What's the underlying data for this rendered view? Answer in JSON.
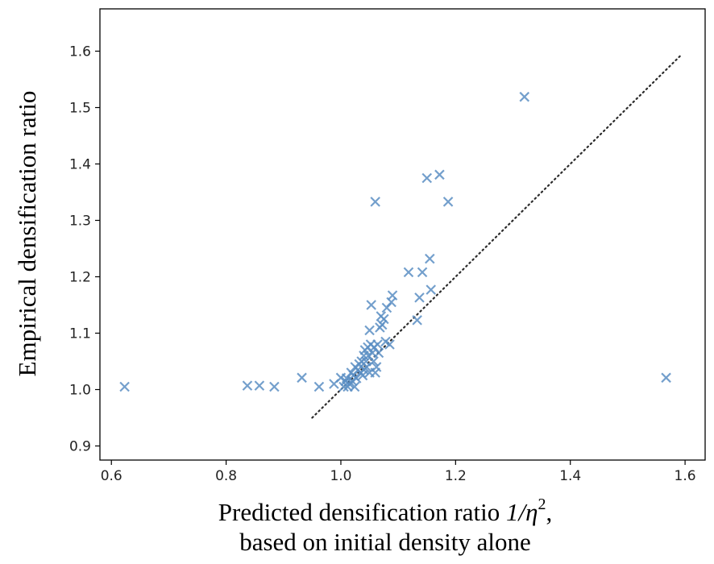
{
  "chart_data": {
    "type": "scatter",
    "title": "",
    "xlabel_line1": "Predicted densification ratio",
    "xlabel_math": "1/η",
    "xlabel_sup": "2",
    "xlabel_trail": ",",
    "xlabel_line2": "based on initial density alone",
    "ylabel": "Empirical densification ratio",
    "xlim": [
      0.58,
      1.635
    ],
    "ylim": [
      0.875,
      1.675
    ],
    "xticks": [
      0.6,
      0.8,
      1.0,
      1.2,
      1.4,
      1.6
    ],
    "xtick_labels": [
      "0.6",
      "0.8",
      "1.0",
      "1.2",
      "1.4",
      "1.6"
    ],
    "yticks": [
      0.9,
      1.0,
      1.1,
      1.2,
      1.3,
      1.4,
      1.5,
      1.6
    ],
    "ytick_labels": [
      "0.9",
      "1.0",
      "1.1",
      "1.2",
      "1.3",
      "1.4",
      "1.5",
      "1.6"
    ],
    "grid": false,
    "marker": "x",
    "marker_color": "#5b8ec3",
    "reference_line": {
      "style": "dotted",
      "color": "#2a2a2a",
      "x": [
        0.95,
        1.595
      ],
      "y": [
        0.95,
        1.595
      ]
    },
    "points": [
      {
        "x": 0.623,
        "y": 1.005
      },
      {
        "x": 0.837,
        "y": 1.007
      },
      {
        "x": 0.858,
        "y": 1.007
      },
      {
        "x": 0.884,
        "y": 1.005
      },
      {
        "x": 0.932,
        "y": 1.021
      },
      {
        "x": 0.962,
        "y": 1.005
      },
      {
        "x": 0.988,
        "y": 1.01
      },
      {
        "x": 1.0,
        "y": 1.021
      },
      {
        "x": 1.005,
        "y": 1.005
      },
      {
        "x": 1.008,
        "y": 1.015
      },
      {
        "x": 1.01,
        "y": 1.02
      },
      {
        "x": 1.012,
        "y": 1.005
      },
      {
        "x": 1.015,
        "y": 1.01
      },
      {
        "x": 1.018,
        "y": 1.03
      },
      {
        "x": 1.02,
        "y": 1.015
      },
      {
        "x": 1.022,
        "y": 1.025
      },
      {
        "x": 1.024,
        "y": 1.005
      },
      {
        "x": 1.025,
        "y": 1.04
      },
      {
        "x": 1.027,
        "y": 1.02
      },
      {
        "x": 1.03,
        "y": 1.035
      },
      {
        "x": 1.032,
        "y": 1.045
      },
      {
        "x": 1.034,
        "y": 1.03
      },
      {
        "x": 1.036,
        "y": 1.05
      },
      {
        "x": 1.038,
        "y": 1.025
      },
      {
        "x": 1.04,
        "y": 1.06
      },
      {
        "x": 1.04,
        "y": 1.035
      },
      {
        "x": 1.042,
        "y": 1.07
      },
      {
        "x": 1.044,
        "y": 1.05
      },
      {
        "x": 1.045,
        "y": 1.04
      },
      {
        "x": 1.047,
        "y": 1.075
      },
      {
        "x": 1.048,
        "y": 1.06
      },
      {
        "x": 1.05,
        "y": 1.03
      },
      {
        "x": 1.05,
        "y": 1.105
      },
      {
        "x": 1.052,
        "y": 1.08
      },
      {
        "x": 1.053,
        "y": 1.15
      },
      {
        "x": 1.055,
        "y": 1.065
      },
      {
        "x": 1.057,
        "y": 1.05
      },
      {
        "x": 1.058,
        "y": 1.075
      },
      {
        "x": 1.06,
        "y": 1.333
      },
      {
        "x": 1.06,
        "y": 1.03
      },
      {
        "x": 1.062,
        "y": 1.04
      },
      {
        "x": 1.064,
        "y": 1.08
      },
      {
        "x": 1.066,
        "y": 1.065
      },
      {
        "x": 1.068,
        "y": 1.11
      },
      {
        "x": 1.07,
        "y": 1.13
      },
      {
        "x": 1.072,
        "y": 1.115
      },
      {
        "x": 1.075,
        "y": 1.125
      },
      {
        "x": 1.078,
        "y": 1.085
      },
      {
        "x": 1.08,
        "y": 1.145
      },
      {
        "x": 1.085,
        "y": 1.08
      },
      {
        "x": 1.088,
        "y": 1.155
      },
      {
        "x": 1.09,
        "y": 1.167
      },
      {
        "x": 1.118,
        "y": 1.208
      },
      {
        "x": 1.133,
        "y": 1.123
      },
      {
        "x": 1.137,
        "y": 1.163
      },
      {
        "x": 1.142,
        "y": 1.208
      },
      {
        "x": 1.15,
        "y": 1.375
      },
      {
        "x": 1.155,
        "y": 1.232
      },
      {
        "x": 1.157,
        "y": 1.177
      },
      {
        "x": 1.172,
        "y": 1.381
      },
      {
        "x": 1.187,
        "y": 1.333
      },
      {
        "x": 1.32,
        "y": 1.519
      },
      {
        "x": 1.567,
        "y": 1.021
      }
    ]
  }
}
